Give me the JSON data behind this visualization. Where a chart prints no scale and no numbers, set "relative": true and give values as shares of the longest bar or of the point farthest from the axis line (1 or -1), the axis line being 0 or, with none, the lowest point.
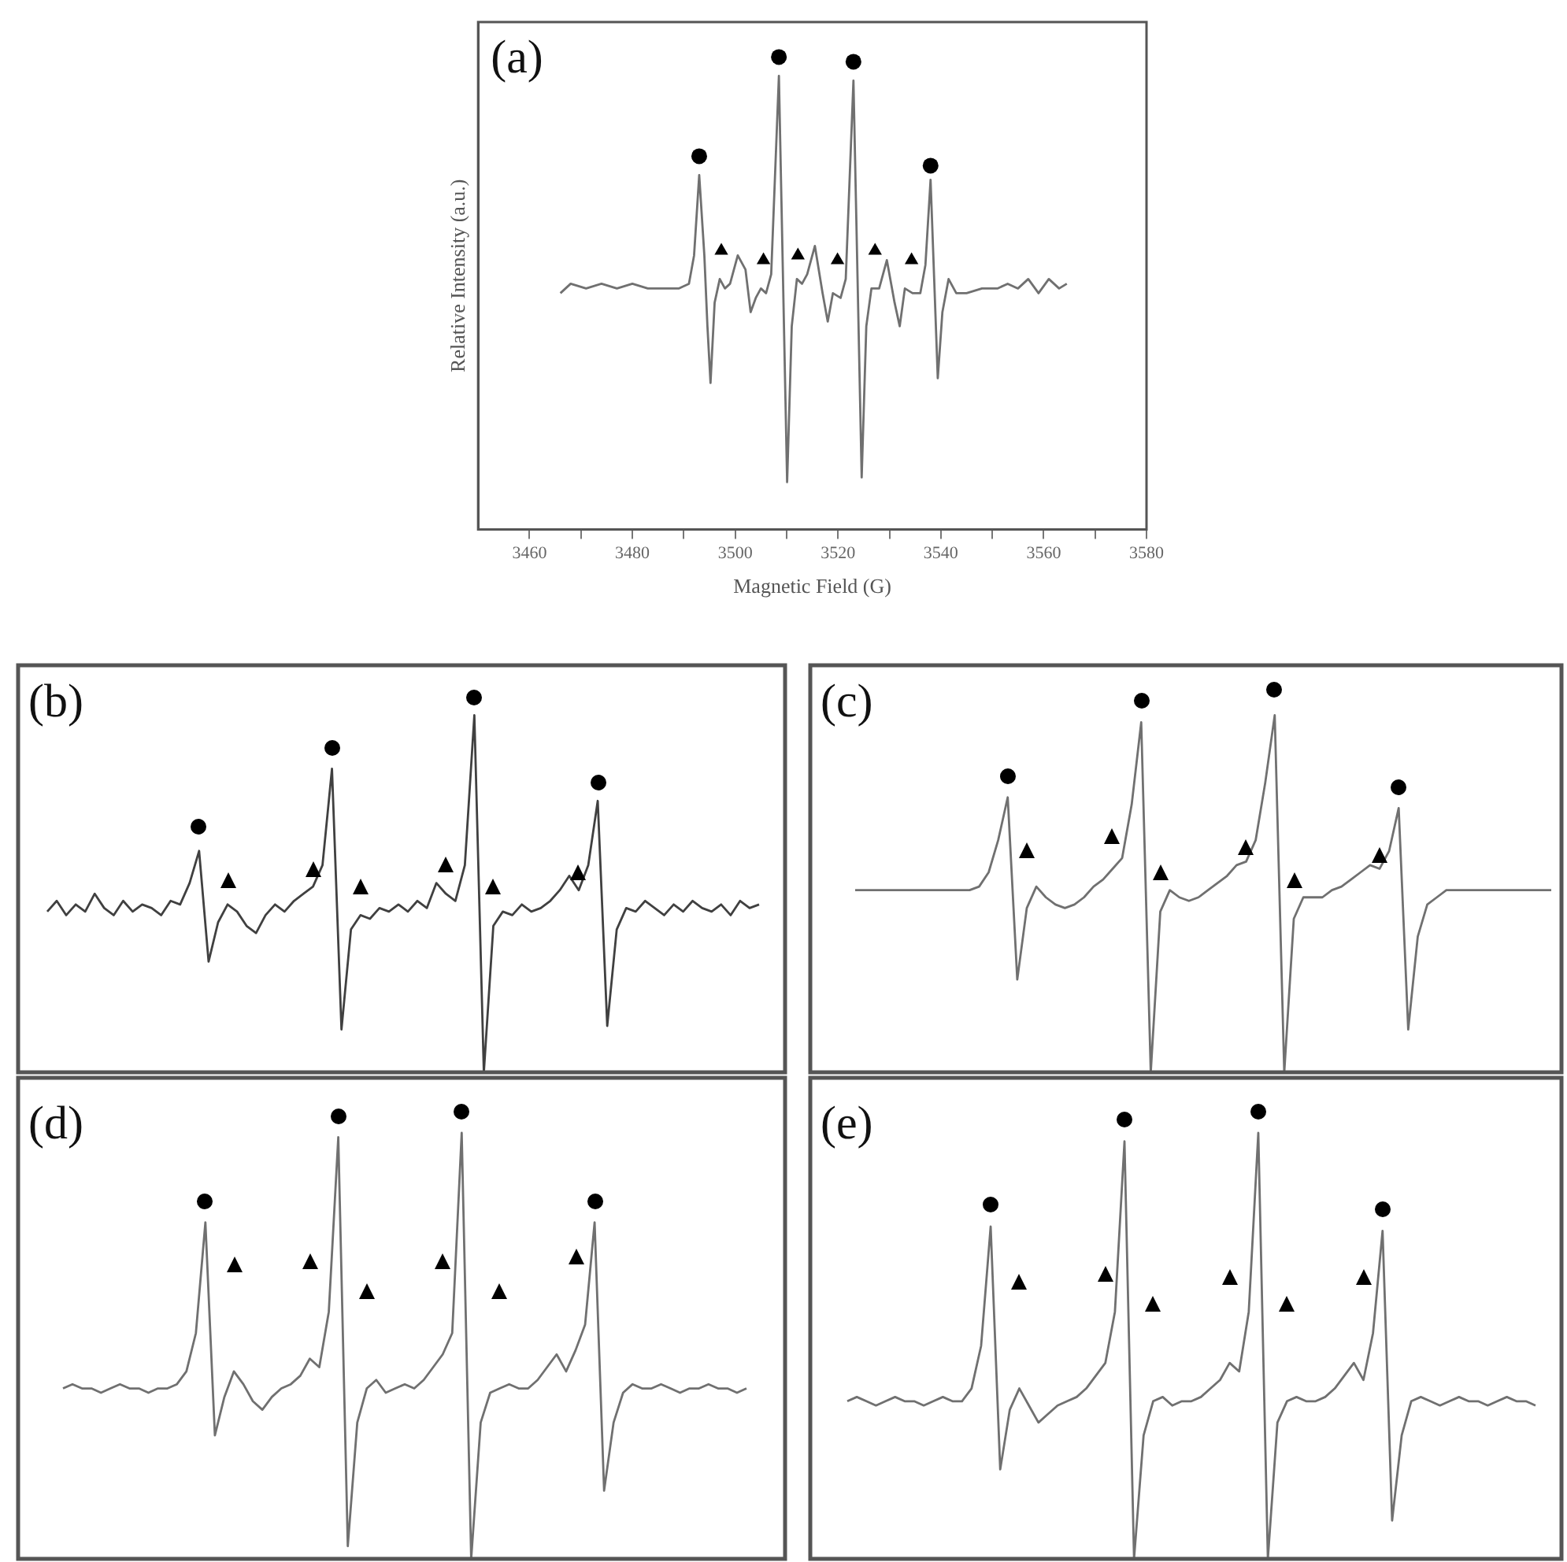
{
  "chart_data": [
    {
      "type": "line",
      "relative": true,
      "xlabel": "Magnetic Field (G)",
      "ylabel": "Relative Intensity (a.u.)",
      "annotations": [
        "(a)"
      ],
      "tick_labels": "x",
      "legend": false,
      "xlim": [
        3450,
        3580
      ],
      "xticks": [
        3460,
        {
          "value": 3470,
          "label": null
        },
        3480,
        {
          "value": 3490,
          "label": null
        },
        3500,
        {
          "value": 3510,
          "label": null
        },
        3520,
        {
          "value": 3530,
          "label": null
        },
        3540,
        {
          "value": 3550,
          "label": null
        },
        3560,
        {
          "value": 3570,
          "label": null
        },
        3580
      ],
      "series": [
        {
          "type": "line",
          "color": "#707070",
          "marker": "none",
          "x": [
            3466,
            3468,
            3471,
            3474,
            3477,
            3480,
            3483,
            3486,
            3489,
            3491,
            3492,
            3493,
            3494,
            3494.6,
            3495.2,
            3496,
            3497,
            3498,
            3499,
            3500.5,
            3502,
            3503,
            3504,
            3505,
            3506,
            3507,
            3508.5,
            3509.3,
            3510.1,
            3511,
            3512,
            3513,
            3514,
            3515.5,
            3517,
            3518,
            3519,
            3520.5,
            3521.5,
            3523,
            3523.8,
            3524.6,
            3525.5,
            3526.5,
            3528,
            3529.5,
            3531,
            3532,
            3533,
            3534.5,
            3536,
            3537,
            3538,
            3538.7,
            3539.4,
            3540.3,
            3541.5,
            3543,
            3545,
            3548,
            3551,
            3553,
            3555,
            3557,
            3559,
            3561,
            3563,
            3564.5
          ],
          "values": [
            0.5,
            0.52,
            0.51,
            0.52,
            0.51,
            0.52,
            0.51,
            0.51,
            0.51,
            0.52,
            0.58,
            0.75,
            0.58,
            0.43,
            0.31,
            0.48,
            0.53,
            0.51,
            0.52,
            0.58,
            0.55,
            0.46,
            0.49,
            0.51,
            0.5,
            0.54,
            0.96,
            0.53,
            0.1,
            0.43,
            0.53,
            0.52,
            0.54,
            0.6,
            0.5,
            0.44,
            0.5,
            0.49,
            0.53,
            0.95,
            0.53,
            0.11,
            0.43,
            0.51,
            0.51,
            0.57,
            0.48,
            0.43,
            0.51,
            0.5,
            0.5,
            0.56,
            0.74,
            0.53,
            0.32,
            0.46,
            0.53,
            0.5,
            0.5,
            0.51,
            0.51,
            0.52,
            0.51,
            0.53,
            0.5,
            0.53,
            0.51,
            0.52
          ]
        },
        {
          "type": "scatter",
          "color": "#000000",
          "marker": "circle",
          "x": [
            3493,
            3508.5,
            3523,
            3538
          ],
          "values": [
            0.79,
            1,
            0.99,
            0.77
          ]
        },
        {
          "type": "scatter",
          "color": "#000000",
          "marker": "triangle",
          "x": [
            3497.3,
            3505.5,
            3512.2,
            3519.9,
            3527.2,
            3534.3
          ],
          "values": [
            0.59,
            0.57,
            0.58,
            0.57,
            0.59,
            0.57
          ]
        }
      ]
    },
    {
      "type": "line",
      "relative": true,
      "annotations": [
        "(b)"
      ],
      "tick_labels": false,
      "legend": false,
      "categories": [
        null,
        null,
        null,
        null,
        null,
        null,
        null,
        null,
        null,
        null,
        null,
        null,
        null,
        null,
        null,
        null,
        null,
        null,
        null,
        null,
        null,
        null,
        null,
        null,
        null,
        null,
        null,
        null,
        null,
        null,
        null,
        null,
        null,
        null,
        null,
        null,
        null,
        null,
        null,
        null,
        null,
        null,
        null,
        null,
        null,
        null,
        null,
        null,
        null,
        null,
        null,
        null,
        null,
        null,
        null,
        null,
        null,
        null,
        null,
        null,
        null,
        null,
        null,
        null,
        null,
        null,
        null,
        null,
        null,
        null,
        null,
        null,
        null,
        null,
        null,
        null
      ],
      "series": [
        {
          "type": "line",
          "color": "#404040",
          "marker": "none",
          "values": [
            0.45,
            0.48,
            0.44,
            0.47,
            0.45,
            0.5,
            0.46,
            0.44,
            0.48,
            0.45,
            0.47,
            0.46,
            0.44,
            0.48,
            0.47,
            0.53,
            0.62,
            0.31,
            0.42,
            0.47,
            0.45,
            0.41,
            0.39,
            0.44,
            0.47,
            0.45,
            0.48,
            0.5,
            0.52,
            0.58,
            0.85,
            0.12,
            0.4,
            0.44,
            0.43,
            0.46,
            0.45,
            0.47,
            0.45,
            0.48,
            0.46,
            0.53,
            0.5,
            0.48,
            0.58,
            1,
            0,
            0.41,
            0.45,
            0.44,
            0.47,
            0.45,
            0.46,
            0.48,
            0.51,
            0.55,
            0.51,
            0.58,
            0.76,
            0.13,
            0.4,
            0.46,
            0.45,
            0.48,
            0.46,
            0.44,
            0.47,
            0.45,
            0.48,
            0.46,
            0.45,
            0.47,
            0.44,
            0.48,
            0.46,
            0.47
          ]
        }
      ]
    },
    {
      "type": "line",
      "relative": true,
      "annotations": [
        "(c)"
      ],
      "tick_labels": false,
      "legend": false,
      "categories": [
        null,
        null,
        null,
        null,
        null,
        null,
        null,
        null,
        null,
        null,
        null,
        null,
        null,
        null,
        null,
        null,
        null,
        null,
        null,
        null,
        null,
        null,
        null,
        null,
        null,
        null,
        null,
        null,
        null,
        null,
        null,
        null,
        null,
        null,
        null,
        null,
        null,
        null,
        null,
        null,
        null,
        null,
        null,
        null,
        null,
        null,
        null,
        null,
        null,
        null,
        null,
        null,
        null,
        null,
        null,
        null,
        null,
        null,
        null,
        null,
        null,
        null,
        null,
        null,
        null,
        null,
        null,
        null,
        null,
        null,
        null,
        null,
        null,
        null
      ],
      "series": [
        {
          "type": "line",
          "color": "#707070",
          "marker": "none",
          "values": [
            0.51,
            0.51,
            0.51,
            0.51,
            0.51,
            0.51,
            0.51,
            0.51,
            0.51,
            0.51,
            0.51,
            0.51,
            0.51,
            0.52,
            0.56,
            0.65,
            0.77,
            0.26,
            0.46,
            0.52,
            0.49,
            0.47,
            0.46,
            0.47,
            0.49,
            0.52,
            0.54,
            0.57,
            0.6,
            0.75,
            0.98,
            0,
            0.45,
            0.51,
            0.49,
            0.48,
            0.49,
            0.51,
            0.53,
            0.55,
            0.58,
            0.59,
            0.65,
            0.81,
            1,
            0,
            0.43,
            0.49,
            0.49,
            0.49,
            0.51,
            0.52,
            0.54,
            0.56,
            0.58,
            0.57,
            0.62,
            0.74,
            0.12,
            0.38,
            0.47,
            0.49,
            0.51,
            0.51,
            0.51,
            0.51,
            0.51,
            0.51,
            0.51,
            0.51,
            0.51,
            0.51,
            0.51,
            0.51
          ]
        }
      ]
    },
    {
      "type": "line",
      "relative": true,
      "annotations": [
        "(d)"
      ],
      "tick_labels": false,
      "legend": false,
      "categories": [
        null,
        null,
        null,
        null,
        null,
        null,
        null,
        null,
        null,
        null,
        null,
        null,
        null,
        null,
        null,
        null,
        null,
        null,
        null,
        null,
        null,
        null,
        null,
        null,
        null,
        null,
        null,
        null,
        null,
        null,
        null,
        null,
        null,
        null,
        null,
        null,
        null,
        null,
        null,
        null,
        null,
        null,
        null,
        null,
        null,
        null,
        null,
        null,
        null,
        null,
        null,
        null,
        null,
        null,
        null,
        null,
        null,
        null,
        null,
        null,
        null,
        null,
        null,
        null,
        null,
        null,
        null,
        null,
        null,
        null,
        null,
        null,
        null
      ],
      "series": [
        {
          "type": "line",
          "color": "#707070",
          "marker": "none",
          "values": [
            0.4,
            0.41,
            0.4,
            0.4,
            0.39,
            0.4,
            0.41,
            0.4,
            0.4,
            0.39,
            0.4,
            0.4,
            0.41,
            0.44,
            0.53,
            0.79,
            0.29,
            0.38,
            0.44,
            0.41,
            0.37,
            0.35,
            0.38,
            0.4,
            0.41,
            0.43,
            0.47,
            0.45,
            0.58,
            0.99,
            0.03,
            0.32,
            0.4,
            0.42,
            0.39,
            0.4,
            0.41,
            0.4,
            0.42,
            0.45,
            0.48,
            0.53,
            1,
            0,
            0.32,
            0.39,
            0.4,
            0.41,
            0.4,
            0.4,
            0.42,
            0.45,
            0.48,
            0.44,
            0.49,
            0.55,
            0.79,
            0.16,
            0.32,
            0.39,
            0.41,
            0.4,
            0.4,
            0.41,
            0.4,
            0.39,
            0.4,
            0.4,
            0.41,
            0.4,
            0.4,
            0.39,
            0.4
          ]
        }
      ]
    },
    {
      "type": "line",
      "relative": true,
      "annotations": [
        "(e)"
      ],
      "tick_labels": false,
      "legend": false,
      "categories": [
        null,
        null,
        null,
        null,
        null,
        null,
        null,
        null,
        null,
        null,
        null,
        null,
        null,
        null,
        null,
        null,
        null,
        null,
        null,
        null,
        null,
        null,
        null,
        null,
        null,
        null,
        null,
        null,
        null,
        null,
        null,
        null,
        null,
        null,
        null,
        null,
        null,
        null,
        null,
        null,
        null,
        null,
        null,
        null,
        null,
        null,
        null,
        null,
        null,
        null,
        null,
        null,
        null,
        null,
        null,
        null,
        null,
        null,
        null,
        null,
        null,
        null,
        null,
        null,
        null,
        null,
        null,
        null,
        null,
        null,
        null,
        null,
        null
      ],
      "series": [
        {
          "type": "line",
          "color": "#707070",
          "marker": "none",
          "values": [
            0.37,
            0.38,
            0.37,
            0.36,
            0.37,
            0.38,
            0.37,
            0.37,
            0.36,
            0.37,
            0.38,
            0.37,
            0.37,
            0.4,
            0.5,
            0.78,
            0.21,
            0.35,
            0.4,
            0.36,
            0.32,
            0.34,
            0.36,
            0.37,
            0.38,
            0.4,
            0.43,
            0.46,
            0.58,
            0.98,
            0,
            0.29,
            0.37,
            0.38,
            0.36,
            0.37,
            0.37,
            0.38,
            0.4,
            0.42,
            0.46,
            0.44,
            0.58,
            1,
            0,
            0.32,
            0.37,
            0.38,
            0.37,
            0.37,
            0.38,
            0.4,
            0.43,
            0.46,
            0.42,
            0.53,
            0.77,
            0.09,
            0.29,
            0.37,
            0.38,
            0.37,
            0.36,
            0.37,
            0.38,
            0.37,
            0.37,
            0.36,
            0.37,
            0.38,
            0.37,
            0.37,
            0.36
          ]
        }
      ]
    }
  ]
}
